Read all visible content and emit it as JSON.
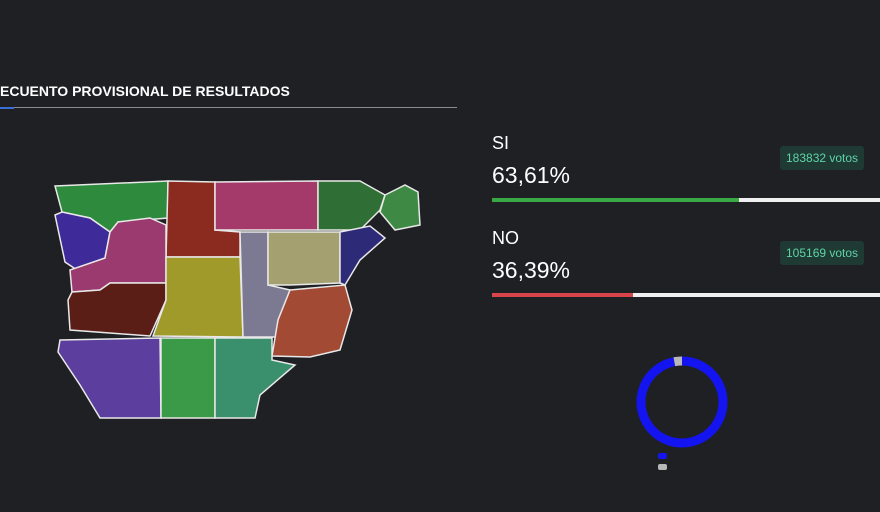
{
  "header": {
    "title": "ECUENTO PROVISIONAL DE RESULTADOS"
  },
  "results": [
    {
      "label": "SI",
      "percent": {
        "value": 63.61,
        "label": "63,61%"
      },
      "votes": "183832 votos",
      "color": "#3aa845"
    },
    {
      "label": "NO",
      "percent": {
        "value": 36.39,
        "label": "36,39%"
      },
      "votes": "105169 votos",
      "color": "#d9434a"
    }
  ],
  "donut": {
    "segments": [
      {
        "value": 97,
        "color": "#1414f0"
      },
      {
        "value": 3,
        "color": "#b8b8b8"
      }
    ]
  }
}
